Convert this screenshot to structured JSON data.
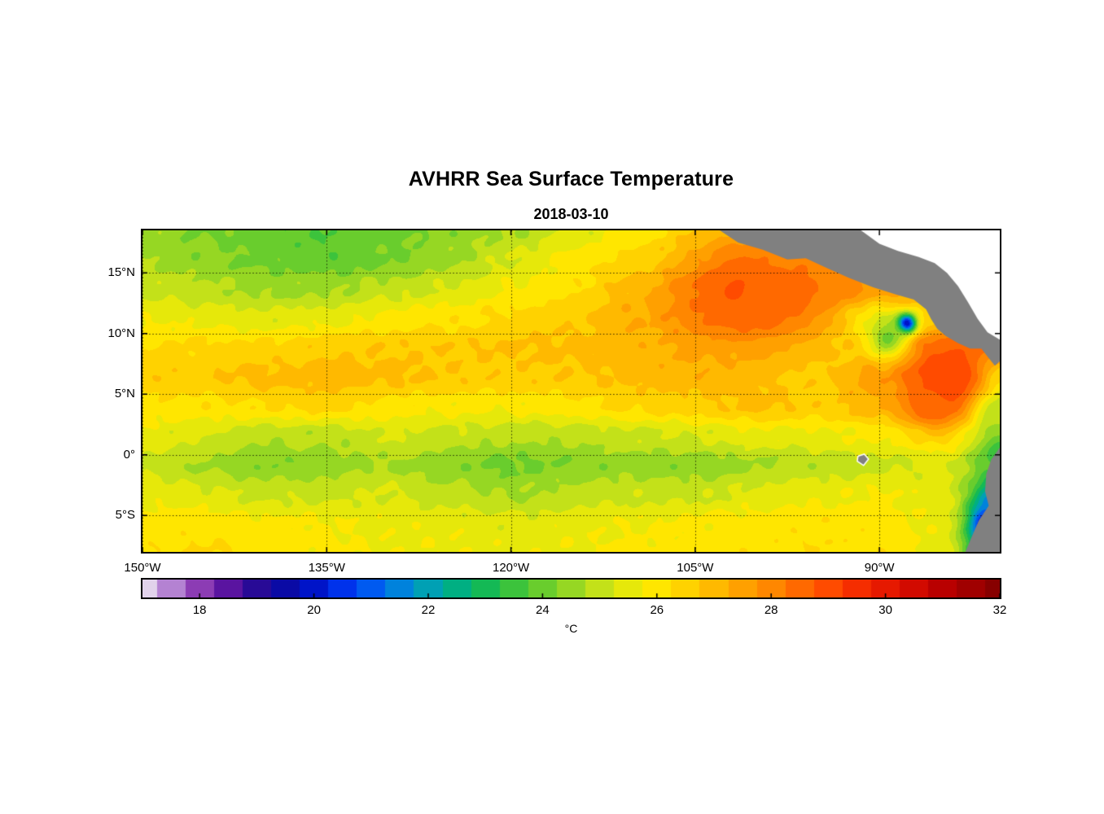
{
  "chart_data": {
    "type": "heatmap",
    "title": "AVHRR Sea Surface Temperature",
    "subtitle": "2018-03-10",
    "lon_range": [
      150,
      80.2
    ],
    "lat_range": [
      -8,
      18.5
    ],
    "x_axis": {
      "ticks": [
        {
          "lon": 150,
          "label": "150°W"
        },
        {
          "lon": 135,
          "label": "135°W"
        },
        {
          "lon": 120,
          "label": "120°W"
        },
        {
          "lon": 105,
          "label": "105°W"
        },
        {
          "lon": 90,
          "label": "90°W"
        }
      ]
    },
    "y_axis": {
      "ticks": [
        {
          "lat": 15,
          "label": "15°N"
        },
        {
          "lat": 10,
          "label": "10°N"
        },
        {
          "lat": 5,
          "label": "5°N"
        },
        {
          "lat": 0,
          "label": "0°"
        },
        {
          "lat": -5,
          "label": "5°S"
        }
      ]
    },
    "colorbar": {
      "min": 17,
      "max": 32,
      "unit": "°C",
      "tick_values": [
        18,
        20,
        22,
        24,
        26,
        28,
        30,
        32
      ],
      "stops": [
        [
          17.0,
          "#E1D2EB"
        ],
        [
          17.5,
          "#B482D2"
        ],
        [
          18.0,
          "#8C3CB4"
        ],
        [
          18.5,
          "#5A14A0"
        ],
        [
          19.0,
          "#280A96"
        ],
        [
          19.5,
          "#0A0AA5"
        ],
        [
          20.0,
          "#0014C8"
        ],
        [
          20.5,
          "#0032EB"
        ],
        [
          21.0,
          "#005AF0"
        ],
        [
          21.5,
          "#0082DC"
        ],
        [
          22.0,
          "#00A0B4"
        ],
        [
          22.5,
          "#00AF82"
        ],
        [
          23.0,
          "#14B955"
        ],
        [
          23.5,
          "#3CC33C"
        ],
        [
          24.0,
          "#69CD2D"
        ],
        [
          24.5,
          "#96D723"
        ],
        [
          25.0,
          "#C3E119"
        ],
        [
          25.5,
          "#E6E80A"
        ],
        [
          26.0,
          "#FFE600"
        ],
        [
          26.5,
          "#FFD200"
        ],
        [
          27.0,
          "#FFB900"
        ],
        [
          27.5,
          "#FFA000"
        ],
        [
          28.0,
          "#FF8700"
        ],
        [
          28.5,
          "#FF6900"
        ],
        [
          29.0,
          "#FF4B00"
        ],
        [
          29.5,
          "#F52D00"
        ],
        [
          30.0,
          "#E61900"
        ],
        [
          30.5,
          "#D20A00"
        ],
        [
          31.0,
          "#B90000"
        ],
        [
          31.5,
          "#A00000"
        ],
        [
          32.0,
          "#870000"
        ]
      ]
    },
    "grid": {
      "lons": [
        150,
        145,
        140,
        135,
        130,
        125,
        120,
        115,
        110,
        105,
        100,
        95,
        90,
        85,
        80
      ],
      "lats": [
        18.5,
        16.1,
        13.7,
        11.3,
        8.9,
        6.4,
        4.0,
        1.6,
        -0.8,
        -3.2,
        -5.6,
        -8.0
      ],
      "sst_c": [
        [
          24.6,
          24.2,
          23.9,
          23.8,
          24.0,
          24.4,
          24.7,
          25.3,
          26.0,
          26.6,
          27.0,
          27.2,
          27.2,
          27.0,
          27.0
        ],
        [
          24.7,
          24.4,
          24.1,
          23.9,
          24.2,
          24.6,
          25.3,
          25.9,
          26.4,
          27.1,
          27.6,
          28.0,
          27.6,
          27.2,
          27.2
        ],
        [
          25.1,
          24.9,
          24.6,
          24.6,
          25.0,
          25.3,
          25.8,
          26.2,
          27.0,
          28.0,
          28.6,
          28.3,
          27.6,
          27.2,
          27.3
        ],
        [
          25.7,
          25.6,
          25.4,
          25.6,
          25.9,
          26.1,
          26.4,
          26.6,
          27.2,
          27.9,
          28.2,
          27.2,
          25.6,
          26.5,
          27.6
        ],
        [
          26.3,
          26.4,
          26.4,
          26.6,
          26.7,
          26.7,
          26.8,
          26.9,
          27.1,
          27.3,
          27.2,
          26.8,
          26.5,
          28.2,
          28.2
        ],
        [
          26.6,
          26.7,
          26.9,
          27.1,
          26.9,
          26.7,
          26.6,
          26.7,
          26.9,
          27.1,
          26.9,
          26.6,
          27.6,
          28.8,
          26.0
        ],
        [
          26.1,
          26.1,
          26.3,
          26.4,
          26.1,
          25.9,
          25.9,
          26.1,
          26.4,
          26.6,
          26.9,
          26.6,
          27.2,
          28.2,
          25.2
        ],
        [
          25.6,
          25.3,
          24.9,
          24.9,
          25.3,
          25.1,
          24.9,
          24.9,
          25.1,
          25.3,
          25.6,
          25.6,
          25.9,
          26.3,
          24.6
        ],
        [
          25.1,
          24.7,
          24.3,
          24.5,
          24.7,
          24.4,
          24.1,
          24.3,
          24.5,
          24.4,
          24.7,
          24.9,
          25.1,
          25.4,
          23.6
        ],
        [
          25.6,
          25.4,
          25.1,
          25.1,
          25.3,
          24.9,
          24.7,
          24.9,
          25.1,
          25.1,
          25.4,
          25.6,
          25.8,
          25.5,
          22.5
        ],
        [
          26.0,
          26.0,
          25.9,
          25.8,
          25.6,
          25.6,
          25.4,
          25.6,
          25.7,
          25.9,
          26.0,
          26.1,
          26.0,
          25.6,
          21.0
        ],
        [
          26.1,
          26.3,
          26.1,
          25.9,
          25.7,
          25.7,
          25.6,
          25.7,
          25.9,
          26.0,
          26.1,
          26.2,
          26.1,
          25.6,
          21.5
        ]
      ]
    },
    "spots": [
      {
        "lon": 87.8,
        "lat": 10.8,
        "sigma": 0.55,
        "value": 19.0
      },
      {
        "lon": 89.3,
        "lat": 9.6,
        "sigma": 1.0,
        "value": 24.0
      },
      {
        "lon": 84.2,
        "lat": 6.4,
        "sigma": 1.9,
        "value": 29.3
      },
      {
        "lon": 85.8,
        "lat": 4.3,
        "sigma": 1.4,
        "value": 28.7
      },
      {
        "lon": 101.5,
        "lat": 13.6,
        "sigma": 2.6,
        "value": 28.8
      },
      {
        "lon": 97.0,
        "lat": 12.9,
        "sigma": 2.0,
        "value": 28.4
      },
      {
        "lon": 93.0,
        "lat": 14.8,
        "sigma": 1.4,
        "value": 27.8
      },
      {
        "lon": 80.6,
        "lat": -5.8,
        "sigma": 1.1,
        "value": 18.5
      },
      {
        "lon": 80.9,
        "lat": -3.8,
        "sigma": 0.8,
        "value": 21.5
      },
      {
        "lon": 80.4,
        "lat": -7.3,
        "sigma": 1.0,
        "value": 19.0
      },
      {
        "lon": 80.4,
        "lat": 3.2,
        "sigma": 1.1,
        "value": 24.8
      },
      {
        "lon": 80.3,
        "lat": 0.3,
        "sigma": 0.9,
        "value": 23.5
      }
    ],
    "land": {
      "color": "#808080",
      "nodata_color": "#ffffff",
      "polygons": [
        {
          "name": "central-america",
          "fill": "land",
          "points": [
            [
              103.0,
              18.5
            ],
            [
              101.5,
              17.5
            ],
            [
              99.5,
              16.9
            ],
            [
              97.5,
              16.1
            ],
            [
              96.0,
              16.2
            ],
            [
              94.5,
              15.5
            ],
            [
              92.5,
              14.6
            ],
            [
              90.5,
              13.8
            ],
            [
              88.6,
              13.2
            ],
            [
              87.2,
              12.8
            ],
            [
              86.2,
              12.0
            ],
            [
              85.8,
              11.2
            ],
            [
              85.3,
              10.4
            ],
            [
              84.6,
              9.8
            ],
            [
              83.6,
              9.2
            ],
            [
              82.6,
              8.75
            ],
            [
              81.7,
              8.75
            ],
            [
              81.2,
              8.1
            ],
            [
              80.6,
              7.35
            ],
            [
              80.2,
              7.7
            ],
            [
              80.2,
              18.5
            ]
          ]
        },
        {
          "name": "caribbean-nodata",
          "fill": "nodata",
          "points": [
            [
              91.5,
              18.5
            ],
            [
              90.0,
              17.4
            ],
            [
              88.5,
              16.8
            ],
            [
              86.8,
              16.3
            ],
            [
              85.5,
              15.8
            ],
            [
              84.5,
              15.0
            ],
            [
              83.6,
              13.9
            ],
            [
              82.8,
              12.6
            ],
            [
              82.0,
              11.2
            ],
            [
              81.2,
              10.1
            ],
            [
              80.2,
              9.5
            ],
            [
              80.2,
              18.5
            ]
          ]
        },
        {
          "name": "south-america",
          "fill": "land",
          "points": [
            [
              80.2,
              0.6
            ],
            [
              80.9,
              -0.4
            ],
            [
              81.3,
              -1.6
            ],
            [
              81.4,
              -3.0
            ],
            [
              81.1,
              -4.2
            ],
            [
              81.9,
              -5.4
            ],
            [
              82.5,
              -6.8
            ],
            [
              83.0,
              -8.0
            ],
            [
              80.2,
              -8.0
            ]
          ]
        },
        {
          "name": "galapagos-island",
          "fill": "land",
          "halo": true,
          "points": [
            [
              91.7,
              -0.15
            ],
            [
              91.25,
              0.0
            ],
            [
              90.95,
              -0.35
            ],
            [
              91.3,
              -0.8
            ],
            [
              91.75,
              -0.5
            ]
          ]
        }
      ]
    }
  }
}
